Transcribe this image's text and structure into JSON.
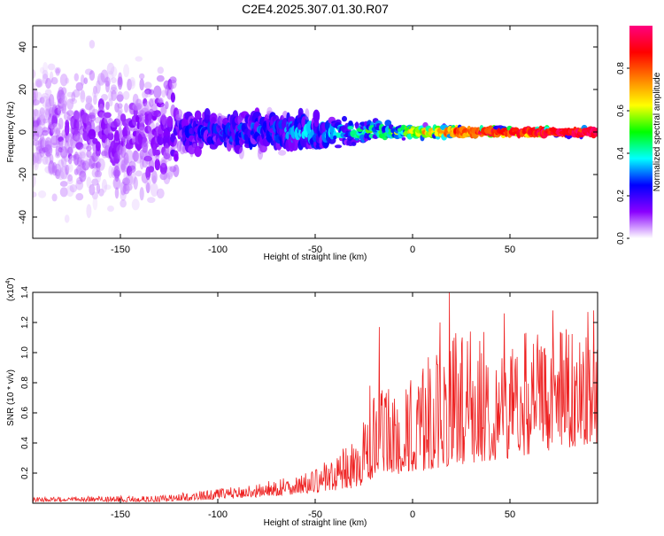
{
  "title": "C2E4.2025.307.01.30.R07",
  "chart_data": [
    {
      "type": "heatmap",
      "id": "spectrogram",
      "xlabel": "Height of straight line (km)",
      "ylabel": "Frequency (Hz)",
      "xlim": [
        -195,
        95
      ],
      "ylim": [
        -50,
        50
      ],
      "xticks": [
        -150,
        -100,
        -50,
        0,
        50
      ],
      "yticks": [
        -40,
        -20,
        0,
        20,
        40
      ],
      "colorbar": {
        "label": "Normalized spectral amplitude",
        "ticks": [
          "0.0",
          "0.2",
          "0.4",
          "0.6",
          "0.8"
        ],
        "tick_values": [
          0.0,
          0.2,
          0.4,
          0.6,
          0.8
        ],
        "range": [
          0,
          1
        ],
        "colormap": [
          "#ffffff",
          "#8a00ff",
          "#0000ff",
          "#00ffff",
          "#00ff00",
          "#ffff00",
          "#ff8000",
          "#ff0000",
          "#ff0080"
        ]
      },
      "profile": [
        {
          "x": -195,
          "spread": 48,
          "amp": 0.08
        },
        {
          "x": -125,
          "spread": 45,
          "amp": 0.12
        },
        {
          "x": -120,
          "spread": 12,
          "amp": 0.22
        },
        {
          "x": -100,
          "spread": 14,
          "amp": 0.25
        },
        {
          "x": -60,
          "spread": 12,
          "amp": 0.3
        },
        {
          "x": -40,
          "spread": 9,
          "amp": 0.35
        },
        {
          "x": -20,
          "spread": 6,
          "amp": 0.45
        },
        {
          "x": 0,
          "spread": 4,
          "amp": 0.55
        },
        {
          "x": 20,
          "spread": 3,
          "amp": 0.75
        },
        {
          "x": 50,
          "spread": 2.5,
          "amp": 0.88
        },
        {
          "x": 95,
          "spread": 2,
          "amp": 0.95
        }
      ]
    },
    {
      "type": "line",
      "id": "snr",
      "xlabel": "Height of straight line (km)",
      "ylabel": "SNR (10 * v/v)",
      "yscale_label": "(x10",
      "yscale_exp": "4",
      "yscale_close": ")",
      "xlim": [
        -195,
        95
      ],
      "ylim": [
        0,
        1.4
      ],
      "xticks": [
        -150,
        -100,
        -50,
        0,
        50
      ],
      "yticks": [
        0.2,
        0.4,
        0.6,
        0.8,
        1.0,
        1.2,
        1.4
      ],
      "color": "#ee2020",
      "envelope": [
        {
          "x": -195,
          "base": 0.01,
          "peak": 0.04
        },
        {
          "x": -130,
          "base": 0.01,
          "peak": 0.05
        },
        {
          "x": -110,
          "base": 0.02,
          "peak": 0.08
        },
        {
          "x": -80,
          "base": 0.04,
          "peak": 0.13
        },
        {
          "x": -50,
          "base": 0.07,
          "peak": 0.22
        },
        {
          "x": -30,
          "base": 0.1,
          "peak": 0.4
        },
        {
          "x": -20,
          "base": 0.15,
          "peak": 0.7
        },
        {
          "x": 0,
          "base": 0.2,
          "peak": 0.8
        },
        {
          "x": 20,
          "base": 0.25,
          "peak": 1.15
        },
        {
          "x": 50,
          "base": 0.3,
          "peak": 1.05
        },
        {
          "x": 70,
          "base": 0.35,
          "peak": 1.15
        },
        {
          "x": 95,
          "base": 0.4,
          "peak": 1.1
        }
      ],
      "notable_peaks": [
        {
          "x": 19,
          "y": 1.4
        },
        {
          "x": 93,
          "y": 1.28
        },
        {
          "x": 90,
          "y": 1.27
        },
        {
          "x": 72,
          "y": 1.28
        },
        {
          "x": 47,
          "y": 1.26
        },
        {
          "x": 14,
          "y": 1.2
        },
        {
          "x": -17,
          "y": 1.17
        },
        {
          "x": -22,
          "y": 0.78
        }
      ]
    }
  ]
}
